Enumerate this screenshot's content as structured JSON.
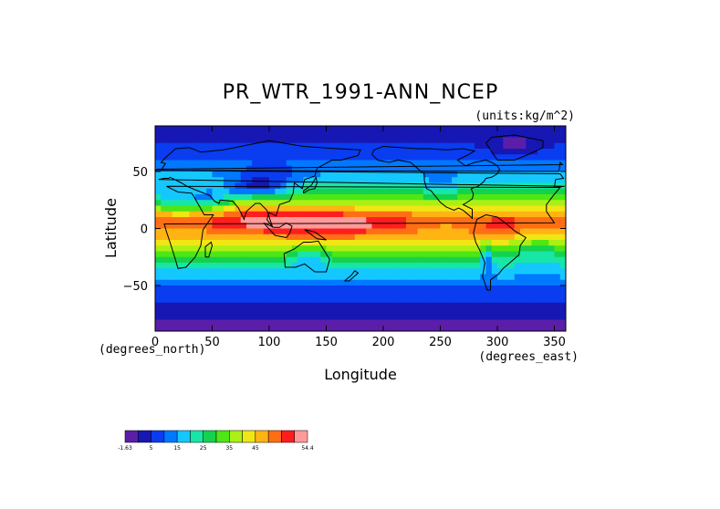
{
  "chart_data": {
    "type": "heatmap",
    "title": "PR_WTR_1991-ANN_NCEP",
    "units": "(units:kg/m^2)",
    "xlabel": "Longitude",
    "ylabel": "Latitude",
    "x_units": "(degrees_east)",
    "y_units": "(degrees_north)",
    "xlim": [
      0,
      360
    ],
    "ylim": [
      -90,
      90
    ],
    "x_ticks": [
      0,
      50,
      100,
      150,
      200,
      250,
      300,
      350
    ],
    "y_ticks": [
      50,
      0,
      -50
    ],
    "x_tick_labels": [
      "0",
      "50",
      "100",
      "150",
      "200",
      "250",
      "300",
      "350"
    ],
    "y_tick_labels": [
      "50",
      "0",
      "−50"
    ],
    "zonal_profile": {
      "lat": [
        90,
        80,
        70,
        60,
        50,
        40,
        30,
        20,
        10,
        5,
        0,
        -5,
        -10,
        -20,
        -30,
        -40,
        -50,
        -60,
        -70,
        -80,
        -90
      ],
      "value": [
        3,
        5,
        7,
        11,
        14,
        19,
        25,
        34,
        45,
        47,
        44,
        40,
        37,
        30,
        22,
        16,
        11,
        8,
        5,
        2,
        1
      ]
    },
    "colorbar": {
      "min": -1.63,
      "max": 54.4,
      "colors": [
        "#5b1ea8",
        "#1717b4",
        "#0a3cf0",
        "#0078ff",
        "#14c8ff",
        "#18e6a6",
        "#14d24e",
        "#4ee614",
        "#aaf014",
        "#f0e614",
        "#ffb414",
        "#ff6e14",
        "#ff1e1e",
        "#ff9a9a"
      ],
      "labels": [
        "-1.63",
        "5",
        "15",
        "25",
        "35",
        "45",
        "54.4"
      ],
      "label_bins": [
        0,
        2,
        4,
        6,
        8,
        10,
        14
      ]
    }
  }
}
